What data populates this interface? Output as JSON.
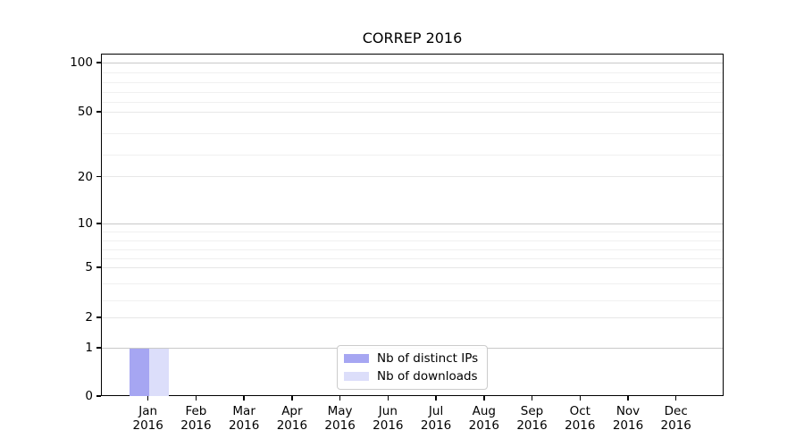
{
  "title": "CORREP 2016",
  "y_axis": {
    "tick_labels": [
      "100",
      "50",
      "20",
      "10",
      "5",
      "2",
      "1",
      "0"
    ]
  },
  "x_axis": {
    "year": "2016",
    "months": [
      "Jan",
      "Feb",
      "Mar",
      "Apr",
      "May",
      "Jun",
      "Jul",
      "Aug",
      "Sep",
      "Oct",
      "Nov",
      "Dec"
    ]
  },
  "legend": {
    "items": [
      {
        "name": "distinct-ips",
        "label": "Nb of distinct IPs",
        "color": "#a6a6f2"
      },
      {
        "name": "downloads",
        "label": "Nb of downloads",
        "color": "#dcdefa"
      }
    ]
  },
  "chart_data": {
    "type": "bar",
    "title": "CORREP 2016",
    "categories": [
      "Jan 2016",
      "Feb 2016",
      "Mar 2016",
      "Apr 2016",
      "May 2016",
      "Jun 2016",
      "Jul 2016",
      "Aug 2016",
      "Sep 2016",
      "Oct 2016",
      "Nov 2016",
      "Dec 2016"
    ],
    "series": [
      {
        "name": "Nb of distinct IPs",
        "color": "#a6a6f2",
        "values": [
          1,
          0,
          0,
          0,
          0,
          0,
          0,
          0,
          0,
          0,
          0,
          0
        ]
      },
      {
        "name": "Nb of downloads",
        "color": "#dcdefa",
        "values": [
          1,
          0,
          0,
          0,
          0,
          0,
          0,
          0,
          0,
          0,
          0,
          0
        ]
      }
    ],
    "xlabel": "",
    "ylabel": "",
    "yticks": [
      0,
      1,
      2,
      5,
      10,
      20,
      50,
      100
    ],
    "ylim": [
      0,
      110
    ],
    "y_scale": "piecewise-linear between ticks 0,1,2,5,10,20,50,100",
    "grid": "horizontal major and faint minor lines",
    "legend_position": "lower center"
  }
}
